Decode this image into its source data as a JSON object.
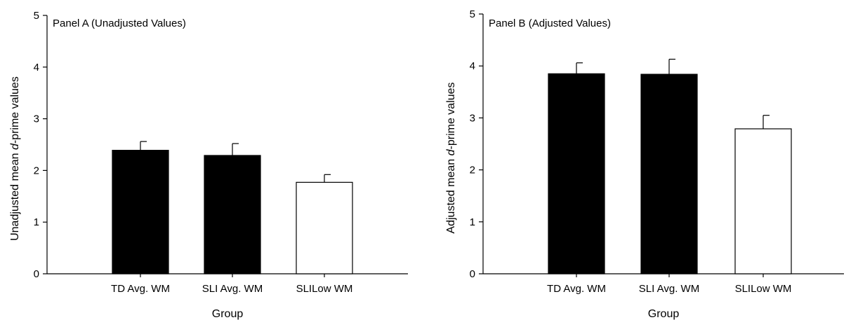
{
  "chart_data": [
    {
      "type": "bar",
      "title": "Panel A (Unadjusted Values)",
      "xlabel": "Group",
      "ylabel": "Unadjusted mean d-prime values",
      "ylabel_parts": [
        "Unadjusted mean ",
        "d",
        "-prime values"
      ],
      "categories": [
        "TD Avg. WM",
        "SLI Avg. WM",
        "SLILow WM"
      ],
      "values": [
        2.39,
        2.29,
        1.77
      ],
      "errors": [
        0.17,
        0.23,
        0.15
      ],
      "bar_colors": [
        "#000000",
        "#000000",
        "#ffffff"
      ],
      "ylim": [
        0,
        5
      ],
      "yticks": [
        "0",
        "1",
        "2",
        "3",
        "4",
        "5"
      ],
      "grid": false
    },
    {
      "type": "bar",
      "title": "Panel B (Adjusted Values)",
      "xlabel": "Group",
      "ylabel": "Adjusted mean d-prime values",
      "ylabel_parts": [
        "Adjusted mean ",
        "d",
        "-prime values"
      ],
      "categories": [
        "TD Avg. WM",
        "SLI Avg. WM",
        "SLILow WM"
      ],
      "values": [
        3.85,
        3.84,
        2.79
      ],
      "errors": [
        0.21,
        0.29,
        0.26
      ],
      "bar_colors": [
        "#000000",
        "#000000",
        "#ffffff"
      ],
      "ylim": [
        0,
        5
      ],
      "yticks": [
        "0",
        "1",
        "2",
        "3",
        "4",
        "5"
      ],
      "grid": false
    }
  ]
}
